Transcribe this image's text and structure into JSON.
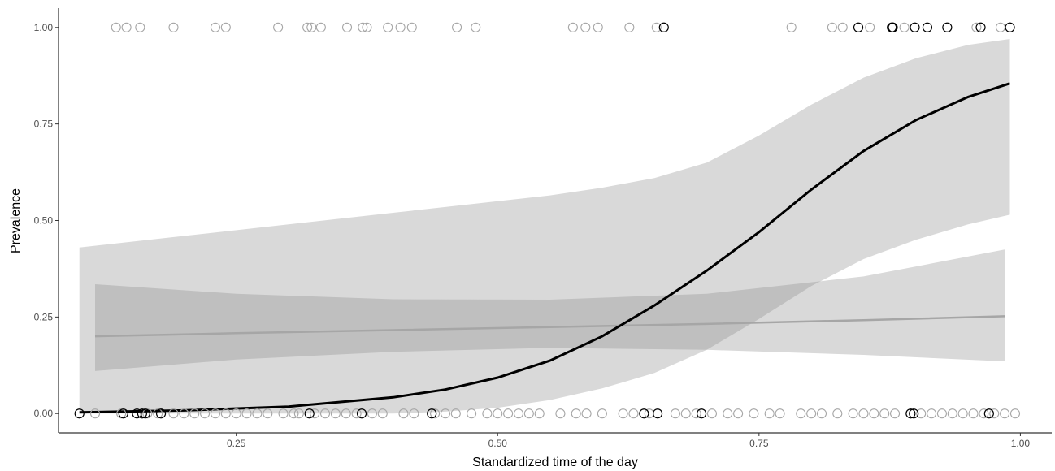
{
  "chart_data": {
    "type": "scatter",
    "xlabel": "Standardized time of the day",
    "ylabel": "Prevalence",
    "xlim": [
      0.08,
      1.03
    ],
    "ylim": [
      -0.05,
      1.05
    ],
    "x_ticks": [
      0.25,
      0.5,
      0.75,
      1.0
    ],
    "x_tick_labels": [
      "0.25",
      "0.50",
      "0.75",
      "1.00"
    ],
    "y_ticks": [
      0,
      0.25,
      0.5,
      0.75,
      1.0
    ],
    "y_tick_labels": [
      "0.00",
      "0.25",
      "0.50",
      "0.75",
      "1.00"
    ],
    "grid": false,
    "legend": "none",
    "colors": {
      "series_a": "#000000",
      "series_b": "#a6a6a6",
      "band_light": "#d9d9d9",
      "band_overlap": "#bfbfbf"
    },
    "series": [
      {
        "color": "#000000",
        "points_y1": [
          0.659,
          0.845,
          0.877,
          0.878,
          0.899,
          0.911,
          0.93,
          0.962,
          0.99
        ],
        "points_y0": [
          0.1,
          0.142,
          0.155,
          0.16,
          0.163,
          0.178,
          0.32,
          0.37,
          0.437,
          0.64,
          0.653,
          0.695,
          0.895,
          0.898,
          0.97
        ],
        "fit": {
          "x": [
            0.1,
            0.2,
            0.3,
            0.4,
            0.45,
            0.5,
            0.55,
            0.6,
            0.65,
            0.7,
            0.75,
            0.8,
            0.85,
            0.9,
            0.95,
            0.99
          ],
          "y": [
            0.003,
            0.008,
            0.018,
            0.042,
            0.062,
            0.093,
            0.137,
            0.2,
            0.28,
            0.37,
            0.47,
            0.58,
            0.68,
            0.76,
            0.82,
            0.855
          ],
          "lower": [
            0.0,
            0.0,
            0.0,
            0.0,
            0.005,
            0.015,
            0.035,
            0.065,
            0.105,
            0.165,
            0.245,
            0.33,
            0.4,
            0.45,
            0.49,
            0.515
          ],
          "upper": [
            0.43,
            0.46,
            0.49,
            0.52,
            0.535,
            0.55,
            0.565,
            0.585,
            0.61,
            0.65,
            0.72,
            0.8,
            0.87,
            0.92,
            0.955,
            0.97
          ]
        }
      },
      {
        "color": "#a6a6a6",
        "points_y1": [
          0.135,
          0.145,
          0.158,
          0.19,
          0.23,
          0.24,
          0.29,
          0.318,
          0.322,
          0.331,
          0.356,
          0.371,
          0.375,
          0.395,
          0.407,
          0.418,
          0.461,
          0.479,
          0.572,
          0.584,
          0.596,
          0.626,
          0.652,
          0.781,
          0.82,
          0.83,
          0.856,
          0.878,
          0.889,
          0.958,
          0.981
        ],
        "points_y0": [
          0.115,
          0.14,
          0.165,
          0.175,
          0.19,
          0.2,
          0.21,
          0.22,
          0.23,
          0.24,
          0.25,
          0.26,
          0.27,
          0.28,
          0.295,
          0.305,
          0.31,
          0.325,
          0.335,
          0.345,
          0.355,
          0.365,
          0.38,
          0.39,
          0.41,
          0.42,
          0.44,
          0.45,
          0.46,
          0.475,
          0.49,
          0.5,
          0.51,
          0.52,
          0.53,
          0.54,
          0.56,
          0.575,
          0.585,
          0.6,
          0.62,
          0.63,
          0.645,
          0.67,
          0.68,
          0.69,
          0.705,
          0.72,
          0.73,
          0.745,
          0.76,
          0.77,
          0.79,
          0.8,
          0.81,
          0.825,
          0.84,
          0.85,
          0.86,
          0.87,
          0.88,
          0.905,
          0.915,
          0.925,
          0.935,
          0.945,
          0.955,
          0.965,
          0.975,
          0.985,
          0.995
        ]
      },
      {
        "color": "#a6a6a6",
        "fit": {
          "x": [
            0.115,
            0.25,
            0.4,
            0.55,
            0.7,
            0.85,
            0.985
          ],
          "y": [
            0.2,
            0.208,
            0.216,
            0.224,
            0.232,
            0.242,
            0.252
          ],
          "lower": [
            0.11,
            0.14,
            0.16,
            0.17,
            0.165,
            0.152,
            0.135
          ],
          "upper": [
            0.335,
            0.31,
            0.296,
            0.295,
            0.31,
            0.355,
            0.425
          ]
        }
      }
    ]
  }
}
